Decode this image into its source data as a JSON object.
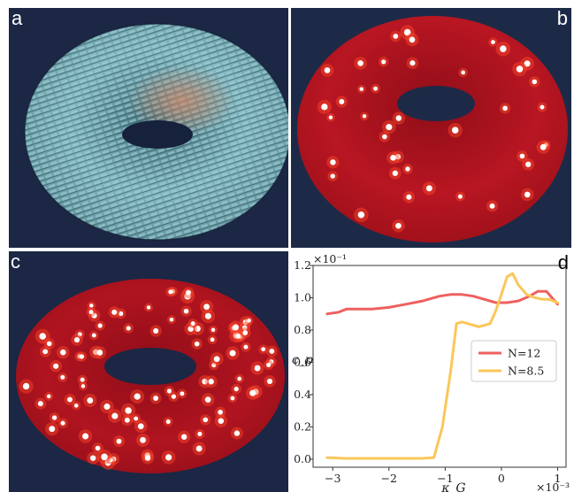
{
  "panels": {
    "a": {
      "label": "a"
    },
    "b": {
      "label": "b"
    },
    "c": {
      "label": "c"
    },
    "d": {
      "label": "d"
    }
  },
  "colors": {
    "background_navy": "#1b2744",
    "torus_red": "#b0121c",
    "rod_teal": "#7fb6bf",
    "series_n12": "#ee6060",
    "series_n85": "#f9c75a"
  },
  "chart_data": {
    "type": "line",
    "xlabel": "κ_G",
    "ylabel": "c_p",
    "x_multiplier": "×10⁻³",
    "y_multiplier": "×10⁻¹",
    "xlim": [
      -3.35,
      1.15
    ],
    "ylim": [
      -0.05,
      1.2
    ],
    "xticks": [
      -3,
      -2,
      -1,
      0,
      1
    ],
    "xtick_labels": [
      "−3",
      "−2",
      "−1",
      "0",
      "1"
    ],
    "yticks": [
      0.0,
      0.2,
      0.4,
      0.6,
      0.8,
      1.0,
      1.2
    ],
    "ytick_labels": [
      "0.0",
      "0.2",
      "0.4",
      "0.6",
      "0.8",
      "1.0",
      "1.2"
    ],
    "grid": false,
    "legend_position": "center-right",
    "series": [
      {
        "name": "N=12",
        "x": [
          -3.1,
          -2.9,
          -2.75,
          -2.6,
          -2.3,
          -2.0,
          -1.7,
          -1.4,
          -1.1,
          -0.9,
          -0.7,
          -0.5,
          -0.3,
          -0.1,
          0.1,
          0.3,
          0.5,
          0.65,
          0.8,
          0.9,
          1.0
        ],
        "y": [
          0.9,
          0.91,
          0.93,
          0.93,
          0.93,
          0.94,
          0.96,
          0.98,
          1.01,
          1.02,
          1.02,
          1.01,
          0.99,
          0.97,
          0.97,
          0.98,
          1.01,
          1.04,
          1.04,
          1.0,
          0.96
        ]
      },
      {
        "name": "N=8.5",
        "x": [
          -3.1,
          -2.8,
          -2.5,
          -2.2,
          -1.9,
          -1.6,
          -1.4,
          -1.2,
          -1.05,
          -0.9,
          -0.8,
          -0.7,
          -0.6,
          -0.5,
          -0.4,
          -0.3,
          -0.2,
          -0.1,
          0.0,
          0.1,
          0.2,
          0.3,
          0.45,
          0.6,
          0.75,
          0.85,
          1.0
        ],
        "y": [
          0.01,
          0.005,
          0.005,
          0.005,
          0.005,
          0.005,
          0.005,
          0.01,
          0.2,
          0.55,
          0.84,
          0.85,
          0.84,
          0.83,
          0.82,
          0.83,
          0.84,
          0.92,
          1.02,
          1.13,
          1.15,
          1.08,
          1.02,
          1.0,
          0.99,
          0.99,
          0.97
        ]
      }
    ]
  }
}
